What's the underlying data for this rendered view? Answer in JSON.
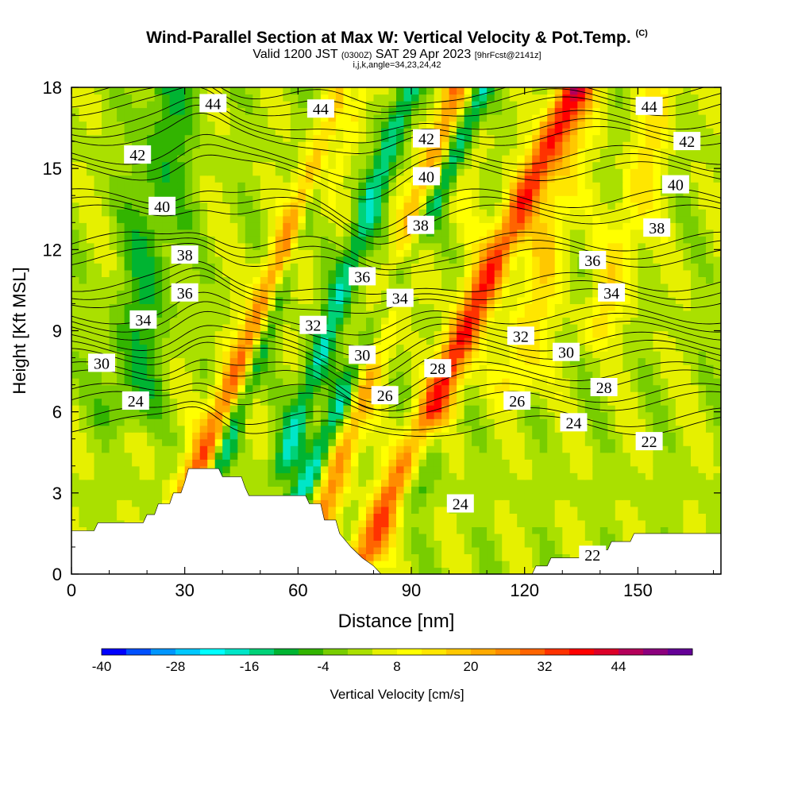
{
  "header": {
    "title": "Wind-Parallel Section at Max W: Vertical Velocity & Pot.Temp.",
    "copyright": "(C)",
    "valid_prefix": "Valid 1200 JST",
    "valid_zulu": "(0300Z)",
    "valid_date": "SAT 29 Apr 2023",
    "forecast_tag": "[9hrFcst@2141z]",
    "params": "i,j,k,angle=34,23,24,42"
  },
  "chart_data": {
    "type": "heatmap",
    "xlabel": "Distance [nm]",
    "ylabel": "Height [Kft MSL]",
    "xlim": [
      0,
      172
    ],
    "ylim": [
      0,
      18
    ],
    "x_ticks": [
      0,
      30,
      60,
      90,
      120,
      150
    ],
    "y_ticks": [
      0,
      3,
      6,
      9,
      12,
      15,
      18
    ],
    "colorbar": {
      "label": "Vertical Velocity [cm/s]",
      "range": [
        -40,
        52
      ],
      "step": 4,
      "tick_values": [
        -40,
        -28,
        -16,
        -4,
        8,
        20,
        32,
        44
      ],
      "colors": [
        "#0000ff",
        "#0050ff",
        "#0096ff",
        "#00c8ff",
        "#00ffff",
        "#00e6c8",
        "#00d278",
        "#00b432",
        "#32b400",
        "#78cd00",
        "#aae000",
        "#e6f000",
        "#ffff00",
        "#ffe600",
        "#ffc800",
        "#ffaa00",
        "#ff8c00",
        "#ff6400",
        "#ff3200",
        "#ff0000",
        "#dc0028",
        "#b4005a",
        "#8c007d",
        "#640096"
      ]
    },
    "terrain": [
      [
        0,
        1.6
      ],
      [
        6,
        1.6
      ],
      [
        7,
        1.9
      ],
      [
        19,
        1.9
      ],
      [
        20,
        2.2
      ],
      [
        22,
        2.2
      ],
      [
        23,
        2.6
      ],
      [
        26,
        2.6
      ],
      [
        27,
        3.0
      ],
      [
        29,
        3.0
      ],
      [
        30,
        3.4
      ],
      [
        31,
        3.9
      ],
      [
        39,
        3.9
      ],
      [
        40,
        3.6
      ],
      [
        45,
        3.6
      ],
      [
        46,
        3.2
      ],
      [
        47,
        2.9
      ],
      [
        62,
        2.9
      ],
      [
        63,
        2.6
      ],
      [
        66,
        2.6
      ],
      [
        67,
        2.0
      ],
      [
        70,
        2.0
      ],
      [
        71,
        1.5
      ],
      [
        74,
        1.0
      ],
      [
        77,
        0.6
      ],
      [
        80,
        0.3
      ],
      [
        82,
        0
      ],
      [
        122,
        0
      ],
      [
        123,
        0.3
      ],
      [
        126,
        0.3
      ],
      [
        127,
        0.6
      ],
      [
        137,
        0.6
      ],
      [
        138,
        0.9
      ],
      [
        142,
        0.9
      ],
      [
        143,
        1.2
      ],
      [
        148,
        1.2
      ],
      [
        149,
        1.5
      ],
      [
        172,
        1.5
      ]
    ],
    "updrafts": [
      {
        "x0": 30,
        "slope": 0.9,
        "amp": 28,
        "width": 4.5,
        "y_from": 2.5,
        "y_to": 18
      },
      {
        "x0": 65,
        "slope": 0.7,
        "amp": 22,
        "width": 4.0,
        "y_from": 1.5,
        "y_to": 18
      },
      {
        "x0": 77,
        "slope": 1.0,
        "amp": 30,
        "width": 4.5,
        "y_from": 0.5,
        "y_to": 18
      },
      {
        "x0": 97,
        "slope": 0.4,
        "amp": 14,
        "width": 5.5,
        "y_from": 6,
        "y_to": 18
      },
      {
        "x0": 118,
        "slope": 0.5,
        "amp": 12,
        "width": 5.5,
        "y_from": 7,
        "y_to": 18
      },
      {
        "x0": 140,
        "slope": 0.6,
        "amp": 10,
        "width": 5.0,
        "y_from": 9,
        "y_to": 18
      }
    ],
    "downdrafts": [
      {
        "x0": 35,
        "slope": 0.8,
        "amp": -24,
        "width": 2.8,
        "y_from": 2.5,
        "y_to": 18
      },
      {
        "x0": 56,
        "slope": 0.75,
        "amp": -18,
        "width": 3.5,
        "y_from": 4,
        "y_to": 18
      },
      {
        "x0": 58,
        "slope": 1.0,
        "amp": -22,
        "width": 3.5,
        "y_from": 2,
        "y_to": 18
      },
      {
        "x0": 90,
        "slope": 0.5,
        "amp": -12,
        "width": 5.0,
        "y_from": 3,
        "y_to": 18
      },
      {
        "x0": 15,
        "slope": 0.3,
        "amp": -10,
        "width": 8.0,
        "y_from": 6,
        "y_to": 18
      }
    ],
    "isentropes": [
      {
        "level": 44,
        "base_y": 17.3
      },
      {
        "level": 42,
        "base_y": 16.2
      },
      {
        "level": 40,
        "base_y": 14.9
      },
      {
        "level": 38,
        "base_y": 13.3
      },
      {
        "level": 36,
        "base_y": 11.7
      },
      {
        "level": 34,
        "base_y": 10.2
      },
      {
        "level": 32,
        "base_y": 9.0
      },
      {
        "level": 30,
        "base_y": 8.0
      },
      {
        "level": 28,
        "base_y": 7.2
      },
      {
        "level": 26,
        "base_y": 6.4
      },
      {
        "level": 24,
        "base_y": 5.5
      }
    ],
    "contour_labels": [
      {
        "text": "44",
        "x": 37.5,
        "y": 17.4
      },
      {
        "text": "44",
        "x": 66,
        "y": 17.2
      },
      {
        "text": "44",
        "x": 153,
        "y": 17.3
      },
      {
        "text": "42",
        "x": 17.5,
        "y": 15.5
      },
      {
        "text": "42",
        "x": 94,
        "y": 16.1
      },
      {
        "text": "42",
        "x": 163,
        "y": 16.0
      },
      {
        "text": "40",
        "x": 24,
        "y": 13.6
      },
      {
        "text": "40",
        "x": 94,
        "y": 14.7
      },
      {
        "text": "40",
        "x": 160,
        "y": 14.4
      },
      {
        "text": "38",
        "x": 30,
        "y": 11.8
      },
      {
        "text": "38",
        "x": 92.5,
        "y": 12.9
      },
      {
        "text": "38",
        "x": 155,
        "y": 12.8
      },
      {
        "text": "36",
        "x": 30,
        "y": 10.4
      },
      {
        "text": "36",
        "x": 77,
        "y": 11.0
      },
      {
        "text": "36",
        "x": 138,
        "y": 11.6
      },
      {
        "text": "34",
        "x": 19,
        "y": 9.4
      },
      {
        "text": "34",
        "x": 87,
        "y": 10.2
      },
      {
        "text": "34",
        "x": 143,
        "y": 10.4
      },
      {
        "text": "32",
        "x": 64,
        "y": 9.2
      },
      {
        "text": "32",
        "x": 119,
        "y": 8.8
      },
      {
        "text": "30",
        "x": 8,
        "y": 7.8
      },
      {
        "text": "30",
        "x": 77,
        "y": 8.1
      },
      {
        "text": "30",
        "x": 131,
        "y": 8.2
      },
      {
        "text": "28",
        "x": 97,
        "y": 7.6
      },
      {
        "text": "28",
        "x": 141,
        "y": 6.9
      },
      {
        "text": "26",
        "x": 83,
        "y": 6.6
      },
      {
        "text": "26",
        "x": 118,
        "y": 6.4
      },
      {
        "text": "24",
        "x": 17,
        "y": 6.4
      },
      {
        "text": "24",
        "x": 133,
        "y": 5.6
      },
      {
        "text": "24",
        "x": 103,
        "y": 2.6
      },
      {
        "text": "22",
        "x": 153,
        "y": 4.9
      },
      {
        "text": "22",
        "x": 138,
        "y": 0.7
      }
    ]
  }
}
